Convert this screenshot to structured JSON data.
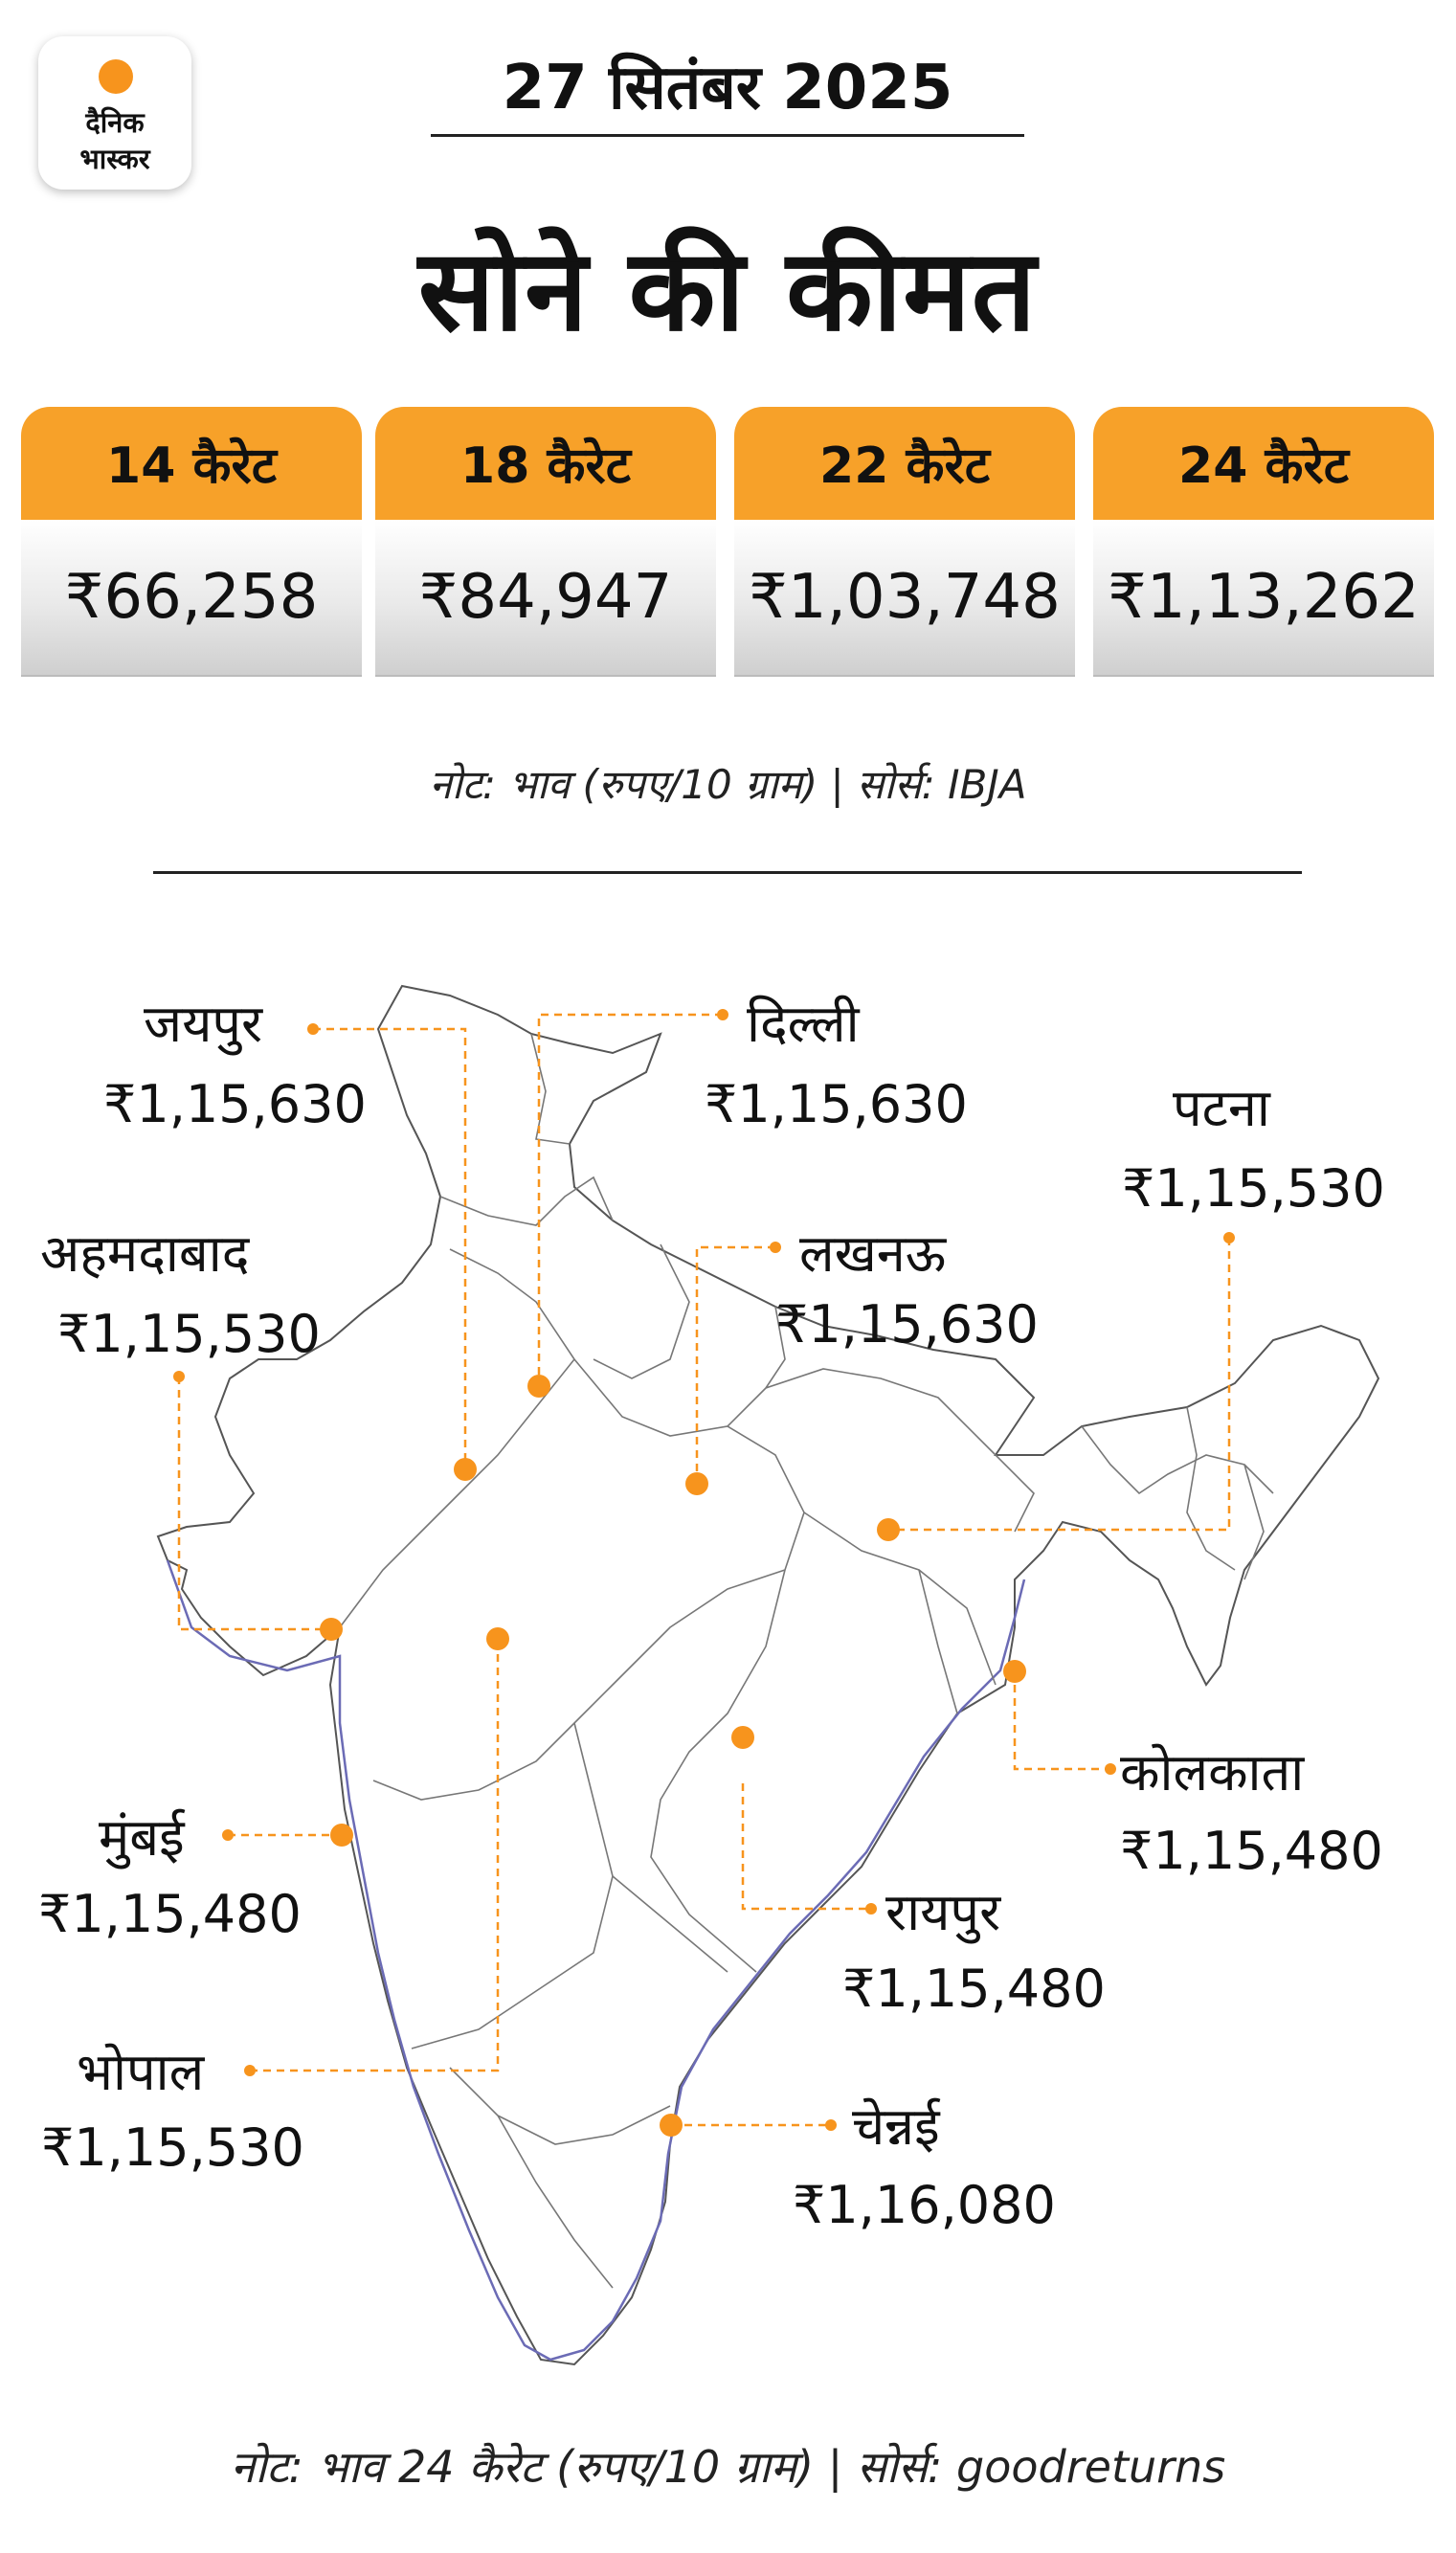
{
  "logo": {
    "line1": "दैनिक",
    "line2": "भास्कर"
  },
  "date": "27 सितंबर 2025",
  "title": "सोने की कीमत",
  "karats": [
    {
      "label": "14 कैरेट",
      "price": "₹66,258"
    },
    {
      "label": "18 कैरेट",
      "price": "₹84,947"
    },
    {
      "label": "22 कैरेट",
      "price": "₹1,03,748"
    },
    {
      "label": "24 कैरेट",
      "price": "₹1,13,262"
    }
  ],
  "note_top": "नोट: भाव (रुपए/10 ग्राम) | सोर्स: IBJA",
  "cities": {
    "jaipur": {
      "name": "जयपुर",
      "price": "₹1,15,630"
    },
    "delhi": {
      "name": "दिल्ली",
      "price": "₹1,15,630"
    },
    "patna": {
      "name": "पटना",
      "price": "₹1,15,530"
    },
    "ahmedabad": {
      "name": "अहमदाबाद",
      "price": "₹1,15,530"
    },
    "lucknow": {
      "name": "लखनऊ",
      "price": "₹1,15,630"
    },
    "mumbai": {
      "name": "मुंबई",
      "price": "₹1,15,480"
    },
    "kolkata": {
      "name": "कोलकाता",
      "price": "₹1,15,480"
    },
    "raipur": {
      "name": "रायपुर",
      "price": "₹1,15,480"
    },
    "bhopal": {
      "name": "भोपाल",
      "price": "₹1,15,530"
    },
    "chennai": {
      "name": "चेन्नई",
      "price": "₹1,16,080"
    }
  },
  "note_bottom": "नोट: भाव 24 कैरेट (रुपए/10 ग्राम) | सोर्स: goodreturns",
  "colors": {
    "accent": "#f7941d",
    "card_header": "#f7a129",
    "coast": "#6b6bb5"
  }
}
